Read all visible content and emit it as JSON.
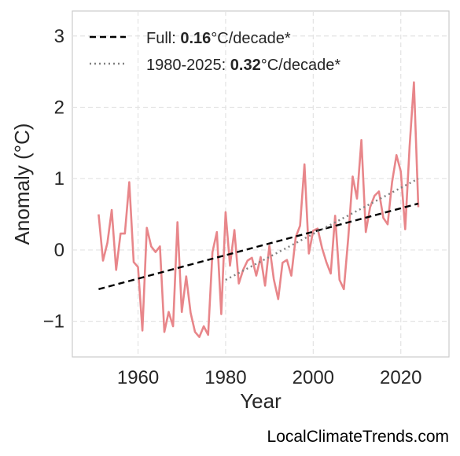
{
  "chart_data": {
    "type": "line",
    "xlabel": "Year",
    "ylabel": "Anomaly (°C)",
    "xlim": [
      1945,
      2031
    ],
    "ylim": [
      -1.5,
      3.35
    ],
    "xticks": [
      1960,
      1980,
      2000,
      2020
    ],
    "xtick_labels": [
      "1960",
      "1980",
      "2000",
      "2020"
    ],
    "yticks": [
      -1,
      0,
      1,
      2,
      3
    ],
    "ytick_labels": [
      "−1",
      "0",
      "1",
      "2",
      "3"
    ],
    "grid": true,
    "legend_position": "top-left",
    "colors": {
      "series": "#e8868a",
      "full_trend": "#000000",
      "recent_trend": "#808080"
    },
    "series": [
      {
        "x": [
          1951,
          1952,
          1953,
          1954,
          1955,
          1956,
          1957,
          1958,
          1959,
          1960,
          1961,
          1962,
          1963,
          1964,
          1965,
          1966,
          1967,
          1968,
          1969,
          1970,
          1971,
          1972,
          1973,
          1974,
          1975,
          1976,
          1977,
          1978,
          1979,
          1980,
          1981,
          1982,
          1983,
          1984,
          1985,
          1986,
          1987,
          1988,
          1989,
          1990,
          1991,
          1992,
          1993,
          1994,
          1995,
          1996,
          1997,
          1998,
          1999,
          2000,
          2001,
          2002,
          2003,
          2004,
          2005,
          2006,
          2007,
          2008,
          2009,
          2010,
          2011,
          2012,
          2013,
          2014,
          2015,
          2016,
          2017,
          2018,
          2019,
          2020,
          2021,
          2022,
          2023,
          2024
        ],
        "values": [
          0.5,
          -0.15,
          0.1,
          0.56,
          -0.28,
          0.23,
          0.23,
          0.95,
          -0.17,
          -0.24,
          -1.13,
          0.31,
          0.05,
          -0.03,
          0.05,
          -1.15,
          -0.87,
          -1.07,
          0.39,
          -0.87,
          -0.37,
          -0.88,
          -1.15,
          -1.22,
          -1.07,
          -1.19,
          -0.03,
          0.25,
          -0.9,
          0.53,
          -0.22,
          0.28,
          -0.47,
          -0.28,
          -0.15,
          -0.11,
          -0.36,
          -0.1,
          -0.5,
          0.06,
          -0.41,
          -0.69,
          -0.18,
          -0.14,
          -0.36,
          0.18,
          0.34,
          1.2,
          -0.05,
          0.27,
          0.3,
          0.03,
          -0.17,
          -0.33,
          0.48,
          -0.42,
          -0.55,
          0.17,
          1.03,
          0.72,
          1.54,
          0.25,
          0.6,
          0.76,
          0.82,
          0.45,
          0.36,
          0.95,
          1.33,
          1.1,
          0.29,
          1.45,
          2.35,
          0.6
        ]
      }
    ],
    "trend_lines": [
      {
        "label": "Full: ",
        "value": "0.16",
        "unit": "°C/decade*",
        "style": "dashed",
        "x": [
          1951,
          2024
        ],
        "y": [
          -0.55,
          0.65
        ]
      },
      {
        "label": "1980-2025: ",
        "value": "0.32",
        "unit": "°C/decade*",
        "style": "dotted",
        "x": [
          1980,
          2024
        ],
        "y": [
          -0.42,
          1.0
        ]
      }
    ]
  },
  "watermark": "LocalClimateTrends.com"
}
